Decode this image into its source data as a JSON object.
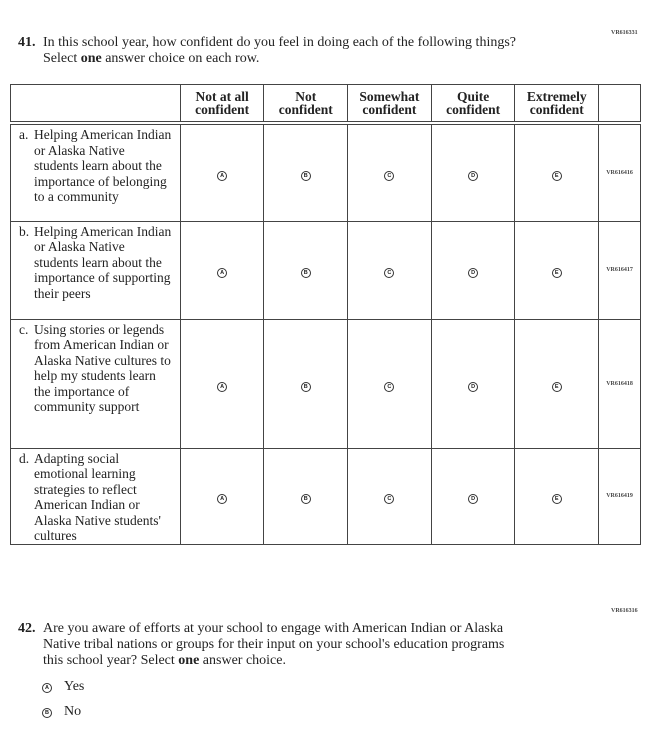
{
  "q41": {
    "code": "VR616331",
    "number": "41.",
    "text": "In this school year, how confident do you feel in doing each of the following things?",
    "instr_pre": "Select ",
    "instr_bold": "one",
    "instr_post": " answer choice on each row.",
    "columns": [
      [
        "Not at all",
        "confident"
      ],
      [
        "Not",
        "confident"
      ],
      [
        "Somewhat",
        "confident"
      ],
      [
        "Quite",
        "confident"
      ],
      [
        "Extremely",
        "confident"
      ]
    ],
    "bubbles": [
      "A",
      "B",
      "C",
      "D",
      "E"
    ],
    "rows": [
      {
        "letter": "a.",
        "text": "Helping American Indian or Alaska Native students learn about the importance of belonging to a community",
        "code": "VR616416"
      },
      {
        "letter": "b.",
        "text": "Helping American Indian or Alaska Native students learn about the importance of supporting their peers",
        "code": "VR616417"
      },
      {
        "letter": "c.",
        "text": "Using stories or legends from American Indian or Alaska Native cultures to help my students learn the importance of community support",
        "code": "VR616418"
      },
      {
        "letter": "d.",
        "text": "Adapting social emotional learning strategies to reflect American Indian or Alaska Native students' cultures",
        "code": "VR616419"
      }
    ]
  },
  "q42": {
    "code": "VR616316",
    "number": "42.",
    "line1": "Are you aware of efforts at your school to engage with American Indian or Alaska",
    "line2": "Native tribal nations or groups for their input on your school's education programs",
    "line3_pre": "this school year? Select ",
    "line3_bold": "one",
    "line3_post": " answer choice.",
    "options": [
      {
        "bubble": "A",
        "label": "Yes"
      },
      {
        "bubble": "B",
        "label": "No"
      }
    ]
  }
}
